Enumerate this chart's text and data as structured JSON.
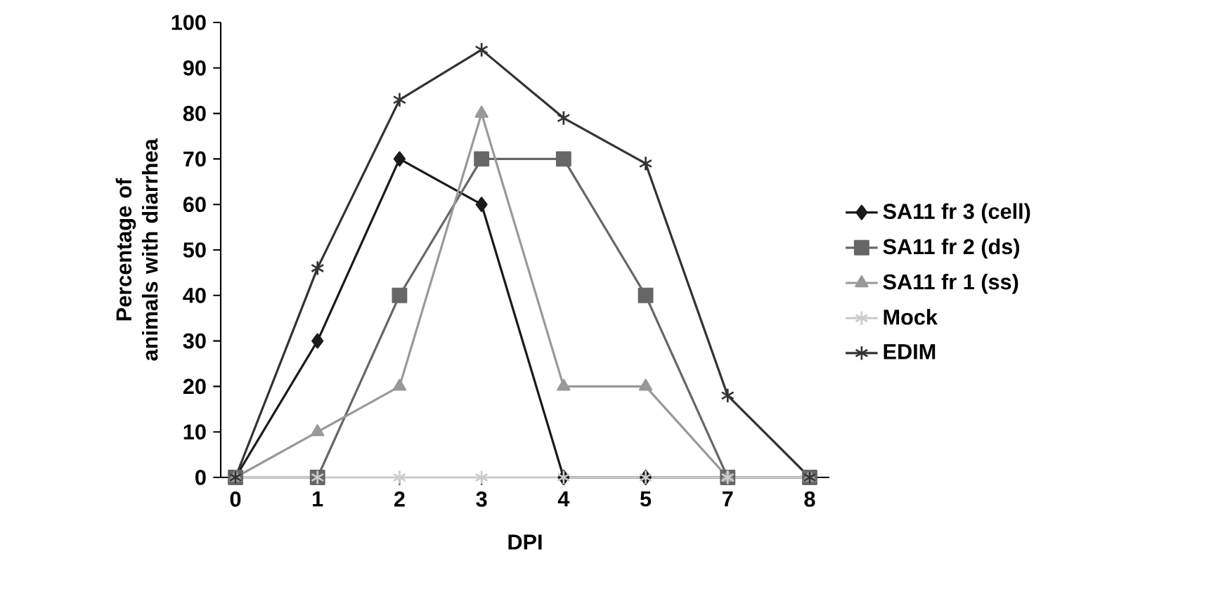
{
  "chart_data": {
    "type": "line",
    "xlabel": "DPI",
    "ylabel": "Percentage of animals with diarrhea",
    "categories": [
      "0",
      "1",
      "2",
      "3",
      "4",
      "5",
      "7",
      "8"
    ],
    "ylim": [
      0,
      100
    ],
    "yticks": [
      0,
      10,
      20,
      30,
      40,
      50,
      60,
      70,
      80,
      90,
      100
    ],
    "grid": false,
    "legend": "right",
    "line_style": "solid",
    "series": [
      {
        "name": "SA11 fr 3 (cell)",
        "color": "#1a1a1a",
        "marker": "diamond",
        "values": [
          0,
          30,
          70,
          60,
          0,
          0,
          0,
          0
        ]
      },
      {
        "name": "SA11 fr 2 (ds)",
        "color": "#666666",
        "marker": "square",
        "values": [
          0,
          0,
          40,
          70,
          70,
          40,
          0,
          0
        ]
      },
      {
        "name": "SA11 fr 1 (ss)",
        "color": "#999999",
        "marker": "triangle",
        "values": [
          0,
          10,
          20,
          80,
          20,
          20,
          0,
          0
        ]
      },
      {
        "name": "Mock",
        "color": "#cccccc",
        "marker": "cross",
        "values": [
          0,
          0,
          0,
          0,
          0,
          0,
          0,
          0
        ]
      },
      {
        "name": "EDIM",
        "color": "#333333",
        "marker": "cross",
        "values": [
          0,
          46,
          83,
          94,
          79,
          69,
          18,
          0
        ]
      }
    ]
  }
}
